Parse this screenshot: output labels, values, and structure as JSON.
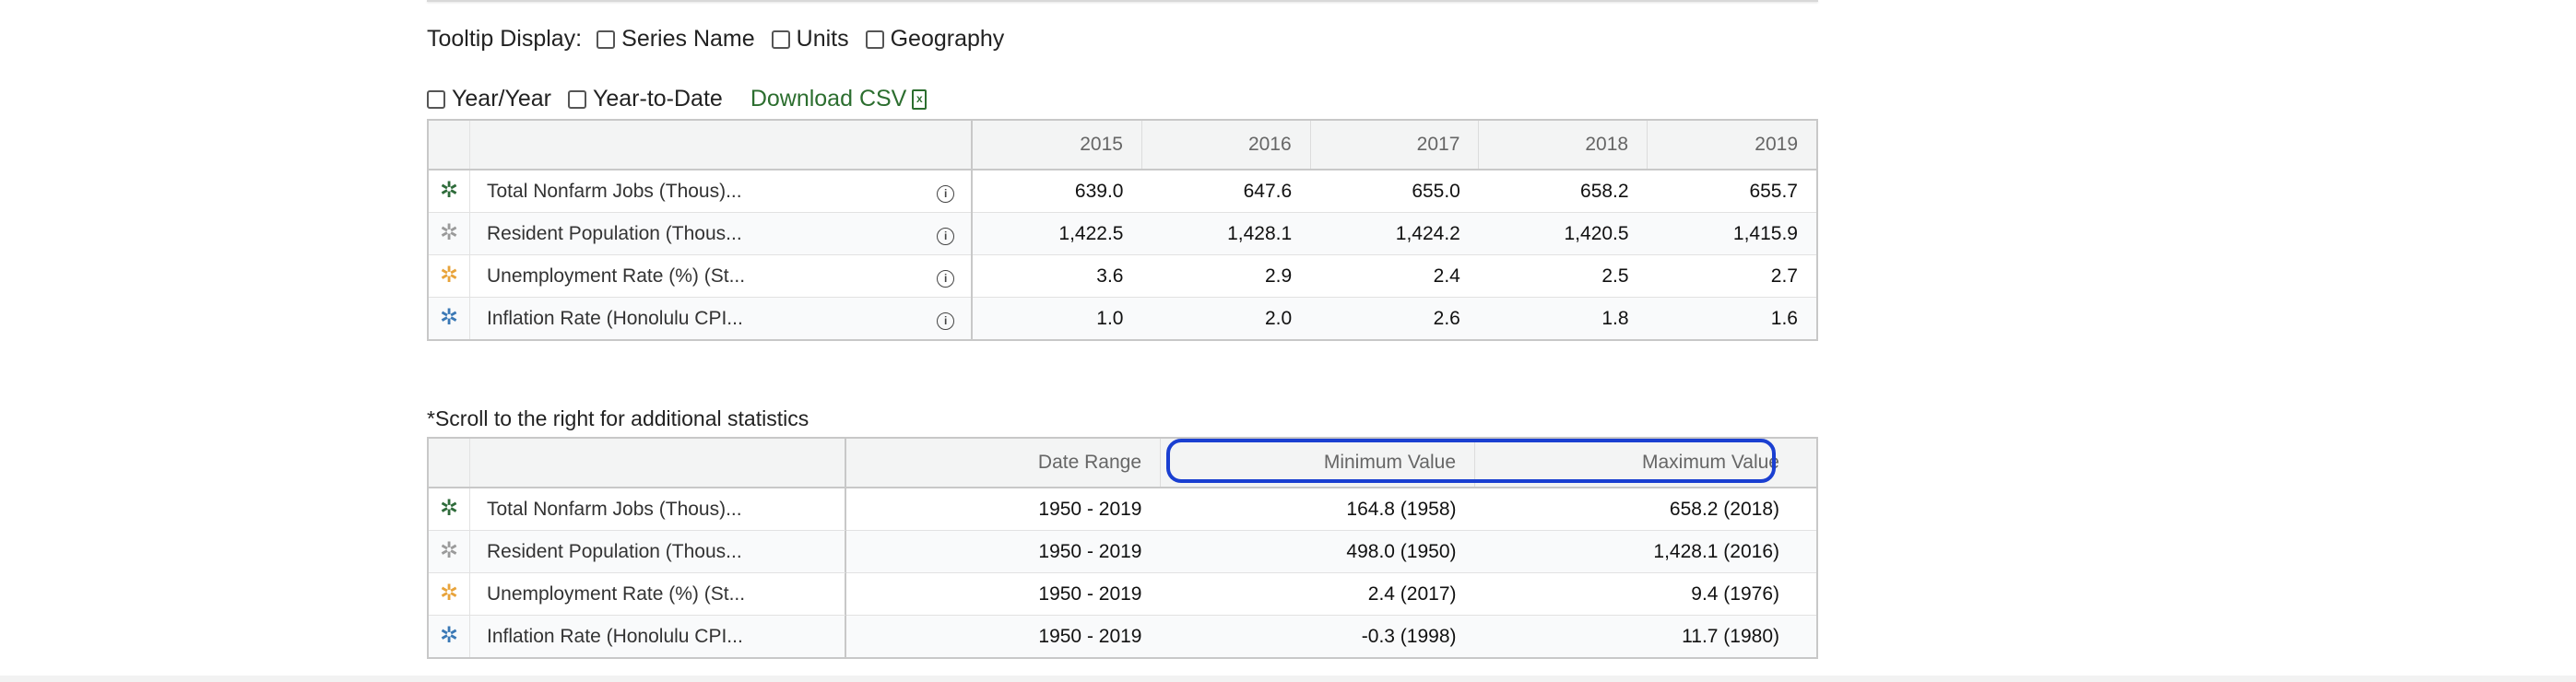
{
  "tooltip": {
    "label": "Tooltip Display:",
    "options": [
      "Series Name",
      "Units",
      "Geography"
    ]
  },
  "toggles": {
    "year_year": "Year/Year",
    "year_to_date": "Year-to-Date",
    "download": "Download CSV"
  },
  "colors": {
    "series": [
      "#2e6b3a",
      "#9a9a9a",
      "#e8a33a",
      "#3a78b5"
    ],
    "highlight": "#1a3fd1",
    "download": "#2c6e2f"
  },
  "data_table": {
    "years": [
      "2015",
      "2016",
      "2017",
      "2018",
      "2019"
    ],
    "rows": [
      {
        "name": "Total Nonfarm Jobs (Thous)...",
        "values": [
          "639.0",
          "647.6",
          "655.0",
          "658.2",
          "655.7"
        ]
      },
      {
        "name": "Resident Population (Thous...",
        "values": [
          "1,422.5",
          "1,428.1",
          "1,424.2",
          "1,420.5",
          "1,415.9"
        ]
      },
      {
        "name": "Unemployment Rate (%) (St...",
        "values": [
          "3.6",
          "2.9",
          "2.4",
          "2.5",
          "2.7"
        ]
      },
      {
        "name": "Inflation Rate (Honolulu CPI...",
        "values": [
          "1.0",
          "2.0",
          "2.6",
          "1.8",
          "1.6"
        ]
      }
    ]
  },
  "stats_note": "*Scroll to the right for additional statistics",
  "stats_table": {
    "headers": [
      "Date Range",
      "Minimum Value",
      "Maximum Value"
    ],
    "rows": [
      {
        "name": "Total Nonfarm Jobs (Thous)...",
        "range": "1950 - 2019",
        "min": "164.8 (1958)",
        "max": "658.2 (2018)"
      },
      {
        "name": "Resident Population (Thous...",
        "range": "1950 - 2019",
        "min": "498.0 (1950)",
        "max": "1,428.1 (2016)"
      },
      {
        "name": "Unemployment Rate (%) (St...",
        "range": "1950 - 2019",
        "min": "2.4 (2017)",
        "max": "9.4 (1976)"
      },
      {
        "name": "Inflation Rate (Honolulu CPI...",
        "range": "1950 - 2019",
        "min": "-0.3 (1998)",
        "max": "11.7 (1980)"
      }
    ]
  }
}
